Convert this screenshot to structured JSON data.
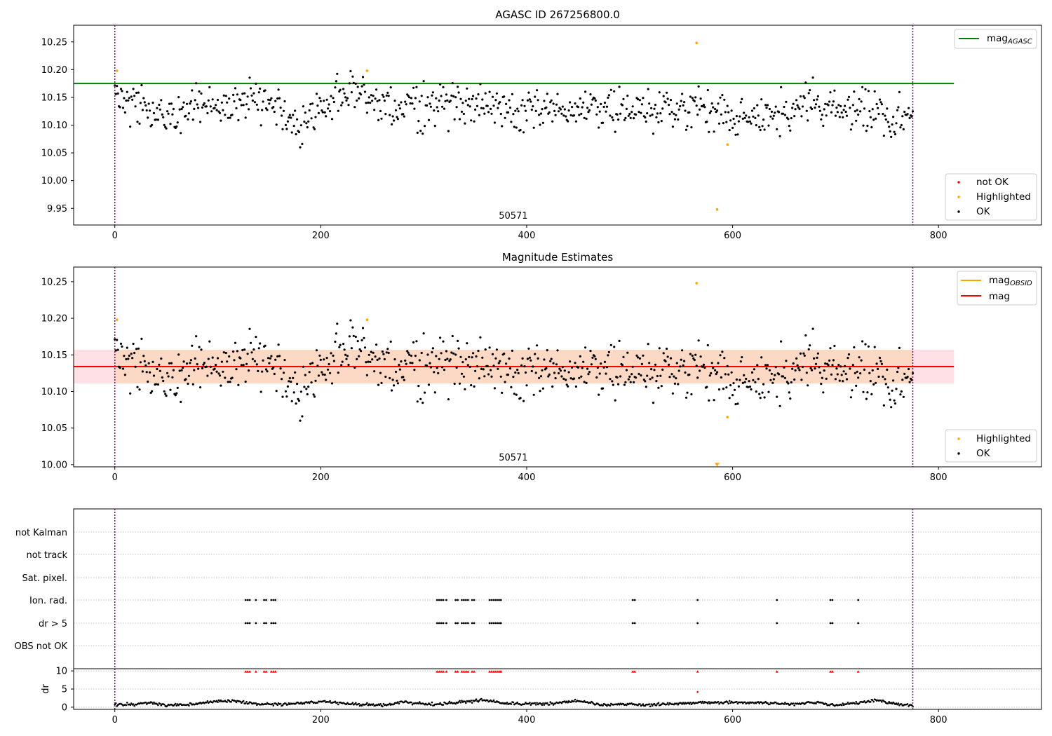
{
  "figure": {
    "colors": {
      "ok": "#000000",
      "highlighted": "#ffa500",
      "not_ok": "#ff0000",
      "mag_agasc_line": "#008000",
      "mag_line": "#ff0000",
      "mag_obsid_line": "#ffa500",
      "band_inner": "#fcd9c4",
      "band_outer": "#ffe0e6",
      "boundary_line": "#800080",
      "grid": "#b0b0b0"
    }
  },
  "chart_data": [
    {
      "type": "scatter",
      "title": "AGASC ID 267256800.0",
      "xlim": [
        -40,
        900
      ],
      "ylim": [
        9.92,
        10.28
      ],
      "xticks": [
        0,
        200,
        400,
        600,
        800
      ],
      "xtick_labels": [
        "0",
        "200",
        "400",
        "600",
        "800"
      ],
      "yticks": [
        9.95,
        10.0,
        10.05,
        10.1,
        10.15,
        10.2,
        10.25
      ],
      "ytick_labels": [
        "9.95",
        "10.00",
        "10.05",
        "10.10",
        "10.15",
        "10.20",
        "10.25"
      ],
      "obsid_boundaries": [
        0,
        775
      ],
      "obsid_label": {
        "text": "50571",
        "x": 387
      },
      "reference_line": {
        "name": "mag_AGASC",
        "label_main": "mag",
        "label_sub": "AGASC",
        "y": 10.175,
        "x_range": [
          -40,
          815
        ]
      },
      "highlighted_points": [
        [
          2,
          10.198
        ],
        [
          245,
          10.198
        ],
        [
          565,
          10.248
        ],
        [
          595,
          10.065
        ],
        [
          585,
          9.948
        ]
      ],
      "legend_top": {
        "position": "top-right",
        "entries": [
          {
            "kind": "line",
            "label_main": "mag",
            "label_sub": "AGASC"
          }
        ]
      },
      "legend_bottom": {
        "position": "bottom-right",
        "entries": [
          {
            "kind": "point",
            "label": "not OK"
          },
          {
            "kind": "point",
            "label": "Highlighted"
          },
          {
            "kind": "point",
            "label": "OK"
          }
        ]
      },
      "ok_points": {
        "x_range": [
          0,
          775
        ],
        "profile": [
          [
            0,
            10.16
          ],
          [
            40,
            10.12
          ],
          [
            60,
            10.12
          ],
          [
            80,
            10.14
          ],
          [
            110,
            10.13
          ],
          [
            140,
            10.15
          ],
          [
            160,
            10.13
          ],
          [
            180,
            10.09
          ],
          [
            200,
            10.13
          ],
          [
            230,
            10.16
          ],
          [
            260,
            10.14
          ],
          [
            300,
            10.13
          ],
          [
            350,
            10.14
          ],
          [
            400,
            10.13
          ],
          [
            450,
            10.13
          ],
          [
            500,
            10.13
          ],
          [
            560,
            10.13
          ],
          [
            580,
            10.12
          ],
          [
            600,
            10.11
          ],
          [
            640,
            10.12
          ],
          [
            680,
            10.14
          ],
          [
            720,
            10.13
          ],
          [
            760,
            10.11
          ],
          [
            775,
            10.11
          ]
        ]
      }
    },
    {
      "type": "scatter",
      "title": "Magnitude Estimates",
      "xlim": [
        -40,
        900
      ],
      "ylim": [
        9.997,
        10.27
      ],
      "xticks": [
        0,
        200,
        400,
        600,
        800
      ],
      "xtick_labels": [
        "0",
        "200",
        "400",
        "600",
        "800"
      ],
      "yticks": [
        10.0,
        10.05,
        10.1,
        10.15,
        10.2,
        10.25
      ],
      "ytick_labels": [
        "10.00",
        "10.05",
        "10.10",
        "10.15",
        "10.20",
        "10.25"
      ],
      "obsid_boundaries": [
        0,
        775
      ],
      "obsid_label": {
        "text": "50571",
        "x": 387
      },
      "mag_line": {
        "y": 10.134,
        "x_range": [
          -40,
          815
        ]
      },
      "mag_band_outer": {
        "y": [
          10.111,
          10.157
        ],
        "x_range": [
          -40,
          815
        ]
      },
      "mag_band_inner": {
        "y": [
          10.111,
          10.157
        ],
        "x_range": [
          0,
          775
        ]
      },
      "mag_obsid_line": {
        "y": 10.134,
        "x_range": [
          0,
          775
        ]
      },
      "highlighted_points": [
        [
          2,
          10.198
        ],
        [
          245,
          10.198
        ],
        [
          565,
          10.248
        ],
        [
          595,
          10.065
        ]
      ],
      "off_scale_marker": {
        "x": 585,
        "y": 10.0
      },
      "legend_top": {
        "position": "top-right",
        "entries": [
          {
            "kind": "line",
            "label_main": "mag",
            "label_sub": "OBSID"
          },
          {
            "kind": "line",
            "label_main": "mag",
            "label_sub": ""
          }
        ]
      },
      "legend_bottom": {
        "position": "bottom-right",
        "entries": [
          {
            "kind": "point",
            "label": "Highlighted"
          },
          {
            "kind": "point",
            "label": "OK"
          }
        ]
      },
      "ok_points": {
        "x_range": [
          0,
          775
        ],
        "profile": [
          [
            0,
            10.16
          ],
          [
            40,
            10.12
          ],
          [
            60,
            10.12
          ],
          [
            80,
            10.14
          ],
          [
            110,
            10.13
          ],
          [
            140,
            10.15
          ],
          [
            160,
            10.13
          ],
          [
            180,
            10.09
          ],
          [
            200,
            10.13
          ],
          [
            230,
            10.16
          ],
          [
            260,
            10.14
          ],
          [
            300,
            10.13
          ],
          [
            350,
            10.14
          ],
          [
            400,
            10.13
          ],
          [
            450,
            10.13
          ],
          [
            500,
            10.13
          ],
          [
            560,
            10.13
          ],
          [
            580,
            10.12
          ],
          [
            600,
            10.11
          ],
          [
            640,
            10.12
          ],
          [
            680,
            10.14
          ],
          [
            720,
            10.13
          ],
          [
            760,
            10.11
          ],
          [
            775,
            10.11
          ]
        ]
      }
    },
    {
      "type": "scatter",
      "xlim": [
        -40,
        900
      ],
      "xticks": [
        0,
        200,
        400,
        600,
        800
      ],
      "xtick_labels": [
        "0",
        "200",
        "400",
        "600",
        "800"
      ],
      "obsid_boundaries": [
        0,
        775
      ],
      "flags": [
        {
          "label": "not Kalman",
          "x": []
        },
        {
          "label": "not track",
          "x": []
        },
        {
          "label": "Sat. pixel.",
          "x": []
        },
        {
          "label": "Ion. rad.",
          "x": [
            127,
            129,
            131,
            137,
            145,
            147,
            152,
            154,
            156,
            313,
            315,
            317,
            319,
            322,
            331,
            333,
            337,
            339,
            341,
            343,
            347,
            349,
            364,
            366,
            368,
            370,
            372,
            374,
            375,
            503,
            505,
            566,
            643,
            695,
            697,
            722
          ]
        },
        {
          "label": "dr > 5",
          "x": [
            127,
            129,
            131,
            137,
            145,
            147,
            152,
            154,
            156,
            313,
            315,
            317,
            319,
            322,
            331,
            333,
            337,
            339,
            341,
            343,
            347,
            349,
            364,
            366,
            368,
            370,
            372,
            374,
            375,
            503,
            505,
            566,
            643,
            695,
            697,
            722
          ]
        },
        {
          "label": "OBS not OK",
          "x": []
        }
      ],
      "dr": {
        "ylabel": "dr",
        "yticks": [
          0,
          5,
          10
        ],
        "ytick_labels": [
          "0",
          "5",
          "10"
        ],
        "ylim": [
          -0.6,
          10.6
        ],
        "clipped_markers_x": [
          127,
          129,
          131,
          137,
          145,
          147,
          152,
          154,
          156,
          313,
          315,
          317,
          319,
          322,
          331,
          333,
          337,
          339,
          341,
          343,
          347,
          349,
          364,
          366,
          368,
          370,
          372,
          374,
          375,
          503,
          505,
          566,
          643,
          695,
          697,
          722
        ],
        "red_point": [
          566,
          4.2
        ],
        "profile": [
          [
            0,
            0.6
          ],
          [
            20,
            0.8
          ],
          [
            30,
            1.3
          ],
          [
            50,
            0.5
          ],
          [
            80,
            0.9
          ],
          [
            100,
            1.6
          ],
          [
            110,
            1.9
          ],
          [
            125,
            1.4
          ],
          [
            140,
            0.8
          ],
          [
            170,
            0.9
          ],
          [
            200,
            1.6
          ],
          [
            230,
            0.9
          ],
          [
            260,
            0.5
          ],
          [
            280,
            1.4
          ],
          [
            310,
            0.8
          ],
          [
            340,
            1.5
          ],
          [
            360,
            2.0
          ],
          [
            380,
            1.0
          ],
          [
            420,
            0.9
          ],
          [
            450,
            1.8
          ],
          [
            470,
            0.6
          ],
          [
            500,
            0.9
          ],
          [
            520,
            0.6
          ],
          [
            560,
            1.2
          ],
          [
            600,
            1.4
          ],
          [
            640,
            1.1
          ],
          [
            660,
            0.8
          ],
          [
            680,
            1.3
          ],
          [
            700,
            0.6
          ],
          [
            720,
            1.1
          ],
          [
            740,
            1.9
          ],
          [
            760,
            0.8
          ],
          [
            775,
            0.3
          ]
        ]
      }
    }
  ]
}
